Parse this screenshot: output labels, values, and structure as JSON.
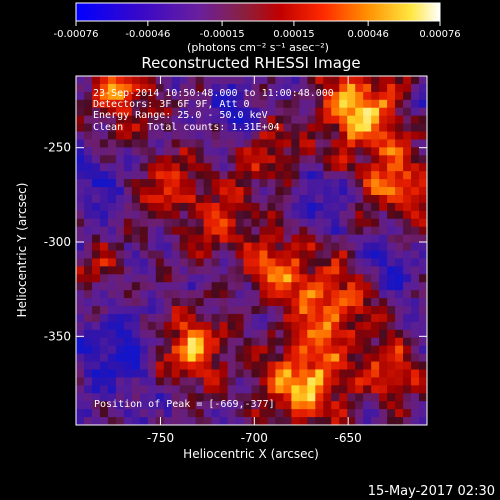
{
  "colorbar": {
    "tick_labels": [
      "-0.00076",
      "-0.00046",
      "-0.00015",
      "0.00015",
      "0.00046",
      "0.00076"
    ],
    "tick_values": [
      -0.00076,
      -0.00046,
      -0.00015,
      0.00015,
      0.00046,
      0.00076
    ],
    "range": [
      -0.00076,
      0.00076
    ],
    "units_label": "(photons cm⁻² s⁻¹ asec⁻²)",
    "colors": [
      "#0000ff",
      "#3b00c8",
      "#6f1fa0",
      "#9b2b22",
      "#c81200",
      "#ff2a00",
      "#ff9a00",
      "#ffee40",
      "#ffffff"
    ]
  },
  "plot": {
    "title": "Reconstructed RHESSI Image",
    "x_axis_label": "Heliocentric X (arcsec)",
    "y_axis_label": "Heliocentric Y (arcsec)",
    "x_tick_labels": [
      "-750",
      "-700",
      "-650"
    ],
    "x_tick_values": [
      -750,
      -700,
      -650
    ],
    "y_tick_labels": [
      "-250",
      "-300",
      "-350"
    ],
    "y_tick_values": [
      -250,
      -300,
      -350
    ],
    "x_range": [
      -795,
      -608
    ],
    "y_range": [
      -212,
      -397
    ]
  },
  "info": {
    "line1": "23-Sep-2014 10:50:48.000 to 11:00:48.000",
    "line2": "Detectors: 3F 6F 9F, Att 0",
    "line3": "Energy Range: 25.0 - 50.0 keV",
    "line4": "Clean    Total counts: 1.31E+04",
    "peak": "Position of Peak = [-669,-377]"
  },
  "footer": {
    "timestamp": "15-May-2017 02:30"
  }
}
